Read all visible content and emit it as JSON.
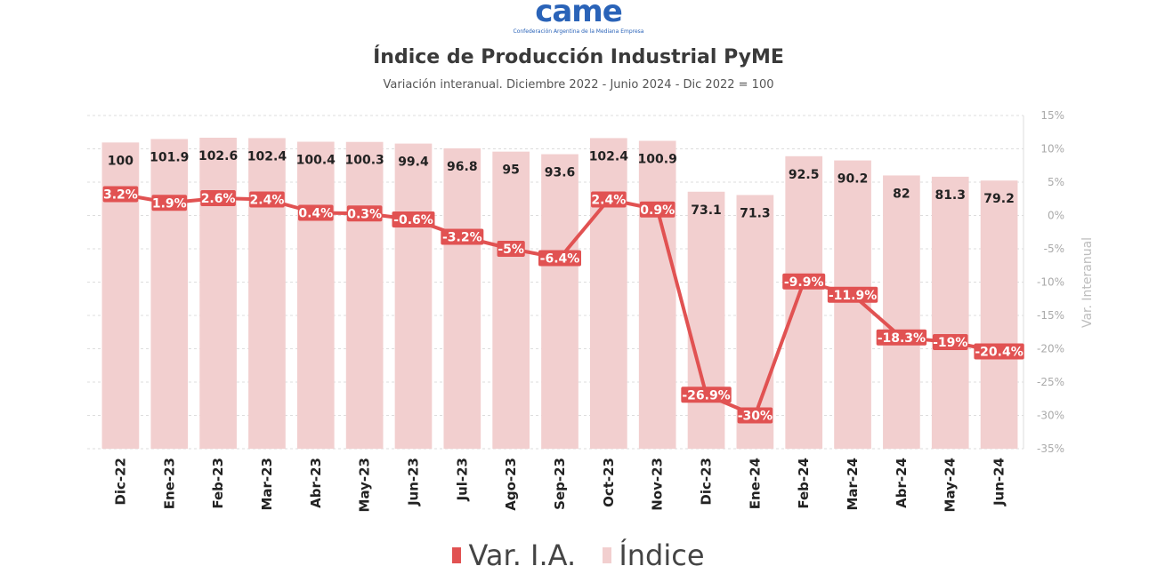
{
  "logo": {
    "word": "came",
    "tagline": "Confederación Argentina de la Mediana Empresa"
  },
  "header": {
    "title": "Índice de Producción Industrial PyME",
    "subtitle": "Variación interanual. Diciembre 2022 - Junio 2024 - Dic 2022 = 100"
  },
  "legend": {
    "line_label": "Var. I.A.",
    "bar_label": "Índice"
  },
  "colors": {
    "bar": "#f2cfcf",
    "line": "#e15252",
    "label_box": "#e15252",
    "brand_blue": "#2a63b8",
    "grid": "#dddddd",
    "axis_text": "#aaaaaa"
  },
  "chart_data": {
    "type": "bar",
    "title": "Índice de Producción Industrial PyME",
    "subtitle": "Variación interanual. Diciembre 2022 - Junio 2024 - Dic 2022 = 100",
    "categories": [
      "Dic-22",
      "Ene-23",
      "Feb-23",
      "Mar-23",
      "Abr-23",
      "May-23",
      "Jun-23",
      "Jul-23",
      "Ago-23",
      "Sep-23",
      "Oct-23",
      "Nov-23",
      "Dic-23",
      "Ene-24",
      "Feb-24",
      "Mar-24",
      "Abr-24",
      "May-24",
      "Jun-24"
    ],
    "series": [
      {
        "name": "Índice",
        "type": "bar",
        "values": [
          100,
          101.9,
          102.6,
          102.4,
          100.4,
          100.3,
          99.4,
          96.8,
          95,
          93.6,
          102.4,
          100.9,
          73.1,
          71.3,
          92.5,
          90.2,
          82,
          81.3,
          79.2
        ],
        "labels": [
          "100",
          "101.9",
          "102.6",
          "102.4",
          "100.4",
          "100.3",
          "99.4",
          "96.8",
          "95",
          "93.6",
          "102.4",
          "100.9",
          "73.1",
          "71.3",
          "92.5",
          "90.2",
          "82",
          "81.3",
          "79.2"
        ]
      },
      {
        "name": "Var. I.A.",
        "type": "line",
        "axis": "right",
        "values": [
          3.2,
          1.9,
          2.6,
          2.4,
          0.4,
          0.3,
          -0.6,
          -3.2,
          -5,
          -6.4,
          2.4,
          0.9,
          -26.9,
          -30,
          -9.9,
          -11.9,
          -18.3,
          -19,
          -20.4
        ],
        "labels": [
          "3.2%",
          "1.9%",
          "2.6%",
          "2.4%",
          "0.4%",
          "0.3%",
          "-0.6%",
          "-3.2%",
          "-5%",
          "-6.4%",
          "2.4%",
          "0.9%",
          "-26.9%",
          "-30%",
          "-9.9%",
          "-11.9%",
          "-18.3%",
          "-19%",
          "-20.4%"
        ]
      }
    ],
    "y2label": "Var. Interanual",
    "y2lim": [
      -35,
      15
    ],
    "y2ticks": [
      "15%",
      "10%",
      "5%",
      "0%",
      "-5%",
      "-10%",
      "-15%",
      "-20%",
      "-25%",
      "-30%",
      "-35%"
    ],
    "grid": true,
    "legend_position": "bottom"
  }
}
